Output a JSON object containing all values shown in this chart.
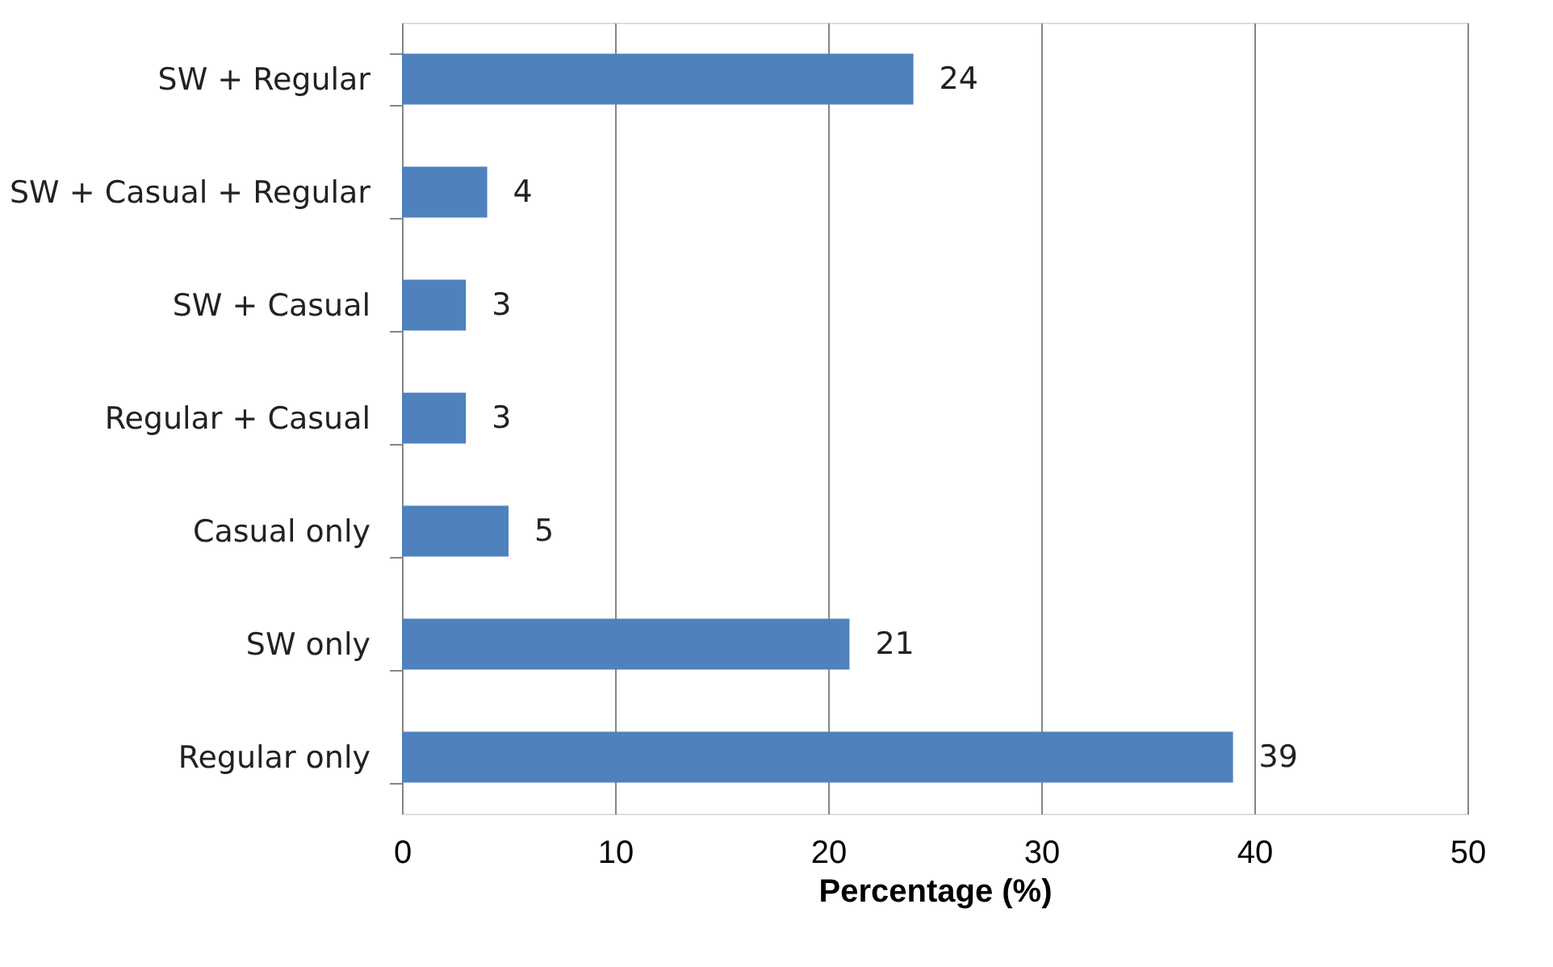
{
  "chart_data": {
    "type": "bar",
    "orientation": "horizontal",
    "xlabel": "Percentage (%)",
    "categories": [
      "SW + Regular",
      "SW + Casual + Regular",
      "SW + Casual",
      "Regular + Casual",
      "Casual only",
      "SW only",
      "Regular only"
    ],
    "values": [
      24,
      4,
      3,
      3,
      5,
      21,
      39
    ],
    "color": "#4f81bd",
    "data_labels": true,
    "xlim": [
      0,
      50
    ],
    "xticks": [
      0,
      10,
      20,
      30,
      40,
      50
    ],
    "grid": "x"
  }
}
